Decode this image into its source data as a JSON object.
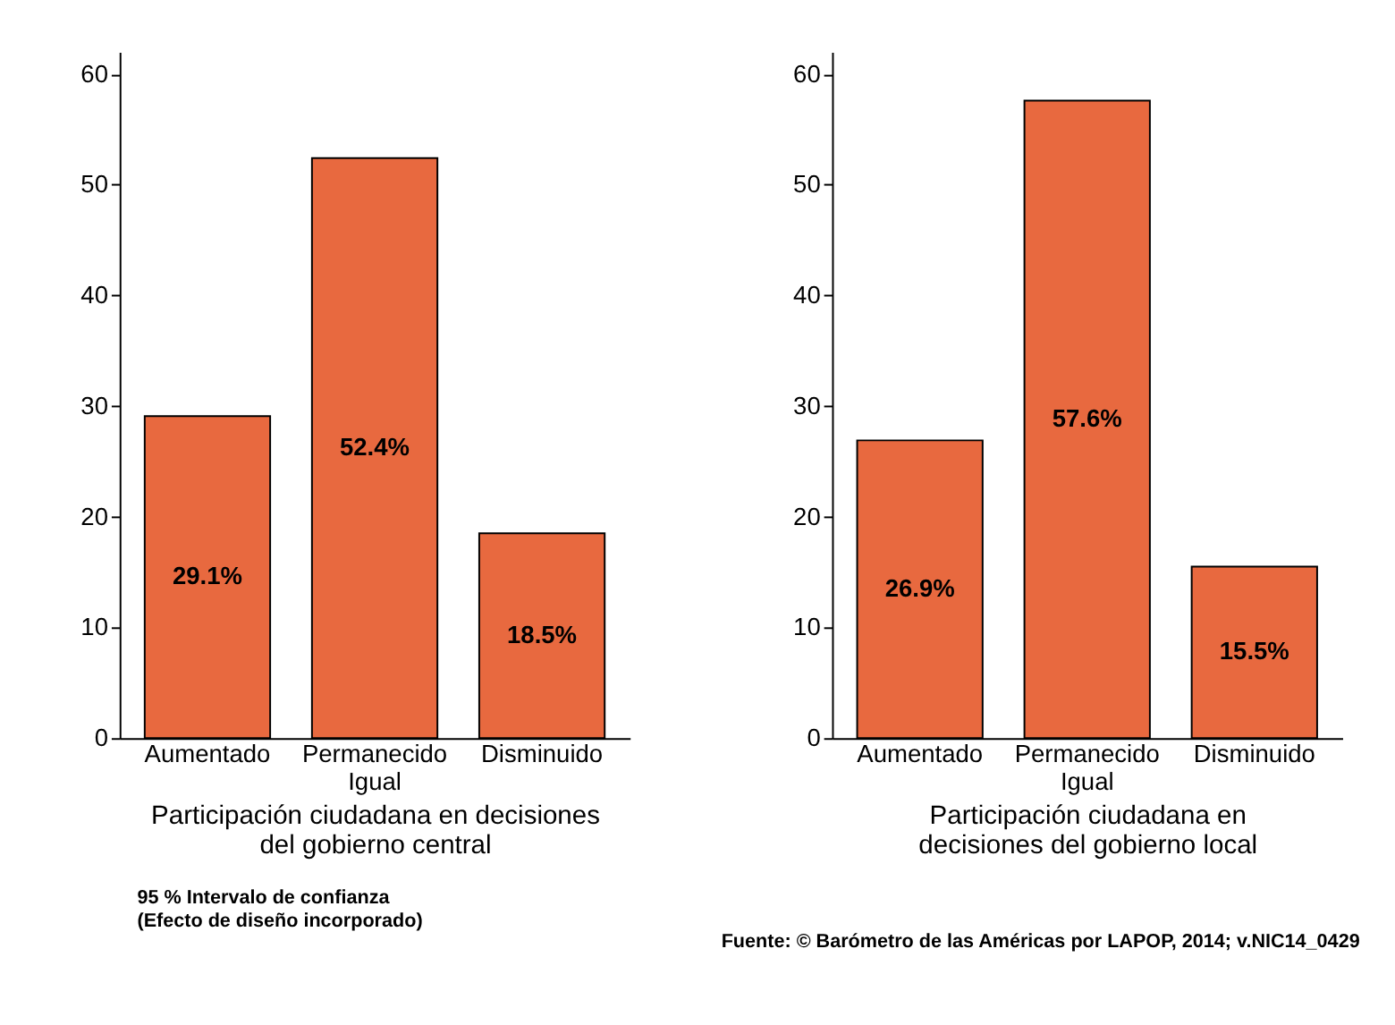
{
  "chart_data": [
    {
      "type": "bar",
      "categories": [
        "Aumentado",
        "Permanecido Igual",
        "Disminuido"
      ],
      "values": [
        29.1,
        52.4,
        18.5
      ],
      "value_labels": [
        "29.1%",
        "52.4%",
        "18.5%"
      ],
      "color": "#e8693f",
      "xlabel": "Participación ciudadana en decisiones\ndel gobierno central",
      "ylim": [
        0,
        62
      ],
      "yticks": [
        0,
        10,
        20,
        30,
        40,
        50,
        60
      ],
      "grid": false,
      "annotations": [
        "95 % Intervalo de confianza\n(Efecto de diseño incorporado)"
      ]
    },
    {
      "type": "bar",
      "categories": [
        "Aumentado",
        "Permanecido Igual",
        "Disminuido"
      ],
      "values": [
        26.9,
        57.6,
        15.5
      ],
      "value_labels": [
        "26.9%",
        "57.6%",
        "15.5%"
      ],
      "color": "#e8693f",
      "xlabel": "Participación ciudadana en\ndecisiones del gobierno local",
      "ylim": [
        0,
        62
      ],
      "yticks": [
        0,
        10,
        20,
        30,
        40,
        50,
        60
      ],
      "grid": false,
      "annotations": [
        "Fuente: © Barómetro de las Américas por LAPOP, 2014; v.NIC14_0429"
      ]
    }
  ]
}
